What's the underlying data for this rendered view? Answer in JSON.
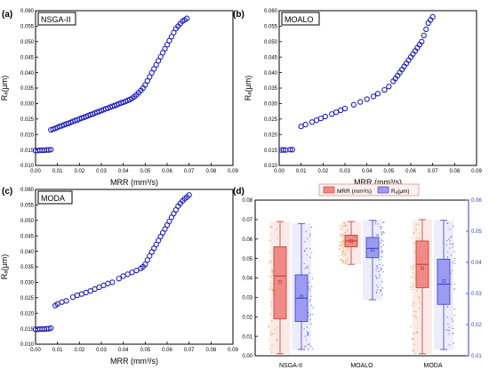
{
  "chart_data": [
    {
      "type": "scatter",
      "panel_label": "(a)",
      "title": "NSGA-II",
      "xlabel": "MRR (mm³/s)",
      "ylabel": "Rₐ(μm)",
      "xlim": [
        0.0,
        0.09
      ],
      "ylim": [
        0.01,
        0.06
      ],
      "xticks": [
        "0.00",
        "0.01",
        "0.02",
        "0.03",
        "0.04",
        "0.05",
        "0.06",
        "0.07",
        "0.08",
        "0.09"
      ],
      "yticks": [
        "0.010",
        "0.015",
        "0.020",
        "0.025",
        "0.030",
        "0.035",
        "0.040",
        "0.045",
        "0.050",
        "0.055",
        "0.060"
      ],
      "grid": false,
      "series": [
        {
          "marker": "open-circle",
          "color": "#1f1fb8",
          "x": [
            0.0,
            0.001,
            0.002,
            0.003,
            0.004,
            0.005,
            0.006,
            0.007,
            0.007,
            0.008,
            0.009,
            0.01,
            0.011,
            0.012,
            0.013,
            0.014,
            0.015,
            0.016,
            0.017,
            0.018,
            0.019,
            0.02,
            0.021,
            0.022,
            0.023,
            0.024,
            0.025,
            0.026,
            0.027,
            0.028,
            0.029,
            0.03,
            0.031,
            0.032,
            0.033,
            0.034,
            0.035,
            0.036,
            0.037,
            0.038,
            0.039,
            0.04,
            0.041,
            0.042,
            0.043,
            0.044,
            0.045,
            0.046,
            0.047,
            0.048,
            0.049,
            0.05,
            0.051,
            0.052,
            0.053,
            0.054,
            0.055,
            0.056,
            0.057,
            0.058,
            0.059,
            0.06,
            0.061,
            0.062,
            0.063,
            0.064,
            0.065,
            0.066,
            0.067,
            0.068,
            0.069
          ],
          "y": [
            0.0148,
            0.0148,
            0.0149,
            0.0149,
            0.0149,
            0.015,
            0.015,
            0.0151,
            0.0215,
            0.0217,
            0.022,
            0.0223,
            0.0226,
            0.0228,
            0.0231,
            0.0234,
            0.0236,
            0.0239,
            0.0242,
            0.0245,
            0.0247,
            0.025,
            0.0253,
            0.0255,
            0.0258,
            0.0261,
            0.0264,
            0.0266,
            0.0269,
            0.0272,
            0.0274,
            0.0277,
            0.028,
            0.0283,
            0.0285,
            0.0288,
            0.0291,
            0.0293,
            0.0296,
            0.0299,
            0.0302,
            0.0304,
            0.0307,
            0.031,
            0.0313,
            0.0317,
            0.0322,
            0.0328,
            0.0335,
            0.0342,
            0.035,
            0.036,
            0.0373,
            0.0386,
            0.0399,
            0.0412,
            0.0425,
            0.0438,
            0.0451,
            0.0464,
            0.0477,
            0.049,
            0.0503,
            0.0516,
            0.0529,
            0.0542,
            0.055,
            0.0558,
            0.0566,
            0.057,
            0.0575
          ]
        }
      ]
    },
    {
      "type": "scatter",
      "panel_label": "(b)",
      "title": "MOALO",
      "xlabel": "MRR (mm³/s)",
      "ylabel": "Rₐ(μm)",
      "xlim": [
        0.0,
        0.09
      ],
      "ylim": [
        0.01,
        0.06
      ],
      "xticks": [
        "0.00",
        "0.01",
        "0.02",
        "0.03",
        "0.04",
        "0.05",
        "0.06",
        "0.07",
        "0.08",
        "0.09"
      ],
      "yticks": [
        "0.010",
        "0.015",
        "0.020",
        "0.025",
        "0.030",
        "0.035",
        "0.040",
        "0.045",
        "0.050",
        "0.055",
        "0.060"
      ],
      "grid": false,
      "series": [
        {
          "marker": "open-circle",
          "color": "#1f1fb8",
          "x": [
            0.001,
            0.002,
            0.003,
            0.005,
            0.006,
            0.01,
            0.012,
            0.015,
            0.017,
            0.019,
            0.021,
            0.024,
            0.026,
            0.028,
            0.03,
            0.034,
            0.037,
            0.04,
            0.043,
            0.045,
            0.048,
            0.05,
            0.052,
            0.053,
            0.054,
            0.055,
            0.056,
            0.057,
            0.058,
            0.059,
            0.06,
            0.061,
            0.062,
            0.063,
            0.064,
            0.065,
            0.066,
            0.067,
            0.068,
            0.069,
            0.07
          ],
          "y": [
            0.015,
            0.015,
            0.015,
            0.0151,
            0.0151,
            0.0226,
            0.0232,
            0.024,
            0.0246,
            0.0252,
            0.0258,
            0.0266,
            0.0272,
            0.0278,
            0.0284,
            0.0296,
            0.0305,
            0.0314,
            0.0323,
            0.0332,
            0.0344,
            0.0355,
            0.0372,
            0.0381,
            0.039,
            0.04,
            0.041,
            0.042,
            0.043,
            0.044,
            0.045,
            0.046,
            0.047,
            0.048,
            0.049,
            0.05,
            0.052,
            0.054,
            0.056,
            0.057,
            0.058
          ]
        }
      ]
    },
    {
      "type": "scatter",
      "panel_label": "(c)",
      "title": "MODA",
      "xlabel": "MRR (mm³/s)",
      "ylabel": "Rₐ(μm)",
      "xlim": [
        0.0,
        0.09
      ],
      "ylim": [
        0.01,
        0.06
      ],
      "xticks": [
        "0.00",
        "0.01",
        "0.02",
        "0.03",
        "0.04",
        "0.05",
        "0.06",
        "0.07",
        "0.08",
        "0.09"
      ],
      "yticks": [
        "0.010",
        "0.015",
        "0.020",
        "0.025",
        "0.030",
        "0.035",
        "0.040",
        "0.045",
        "0.050",
        "0.055",
        "0.060"
      ],
      "grid": false,
      "series": [
        {
          "marker": "open-circle",
          "color": "#1f1fb8",
          "x": [
            0.0,
            0.001,
            0.002,
            0.003,
            0.004,
            0.005,
            0.006,
            0.007,
            0.009,
            0.01,
            0.012,
            0.014,
            0.017,
            0.019,
            0.021,
            0.023,
            0.025,
            0.027,
            0.029,
            0.031,
            0.033,
            0.035,
            0.038,
            0.04,
            0.042,
            0.044,
            0.046,
            0.048,
            0.049,
            0.05,
            0.051,
            0.052,
            0.053,
            0.054,
            0.055,
            0.056,
            0.057,
            0.058,
            0.059,
            0.06,
            0.061,
            0.062,
            0.063,
            0.064,
            0.065,
            0.066,
            0.067,
            0.068,
            0.069,
            0.07
          ],
          "y": [
            0.0148,
            0.0148,
            0.0149,
            0.0149,
            0.0149,
            0.015,
            0.015,
            0.0152,
            0.0225,
            0.023,
            0.0236,
            0.024,
            0.0252,
            0.0258,
            0.0262,
            0.0267,
            0.0272,
            0.0278,
            0.0284,
            0.029,
            0.0296,
            0.03,
            0.0312,
            0.032,
            0.0326,
            0.0332,
            0.0338,
            0.0345,
            0.035,
            0.0358,
            0.0372,
            0.0385,
            0.0398,
            0.041,
            0.0422,
            0.0435,
            0.0448,
            0.046,
            0.0472,
            0.0485,
            0.0497,
            0.051,
            0.0522,
            0.0534,
            0.0546,
            0.0555,
            0.0563,
            0.057,
            0.0575,
            0.0582
          ]
        }
      ]
    },
    {
      "type": "box",
      "panel_label": "(d)",
      "categories": [
        "NSGA-II",
        "MOALO",
        "MODA"
      ],
      "legend": [
        "MRR (mm³/s)",
        "Rₐ(μm)"
      ],
      "legend_position": "top",
      "grid": false,
      "y_left": {
        "ylim": [
          0.0,
          0.08
        ],
        "ticks": [
          "0.00",
          "0.01",
          "0.02",
          "0.03",
          "0.04",
          "0.05",
          "0.06",
          "0.07",
          "0.08"
        ]
      },
      "y_right": {
        "ylim": [
          0.01,
          0.06
        ],
        "ticks": [
          "0.01",
          "0.02",
          "0.03",
          "0.04",
          "0.05",
          "0.06"
        ]
      },
      "series": [
        {
          "name": "MRR (mm³/s)",
          "axis": "left",
          "fill": "#f08a86",
          "stroke": "#c0392b",
          "point_color": "#d4a017",
          "boxes": [
            {
              "min": 0.001,
              "q1": 0.019,
              "median": 0.041,
              "q3": 0.056,
              "max": 0.069,
              "mean": 0.038
            },
            {
              "min": 0.047,
              "q1": 0.056,
              "median": 0.059,
              "q3": 0.062,
              "max": 0.069,
              "mean": 0.059
            },
            {
              "min": 0.001,
              "q1": 0.035,
              "median": 0.047,
              "q3": 0.059,
              "max": 0.07,
              "mean": 0.045
            }
          ]
        },
        {
          "name": "Rₐ(μm)",
          "axis": "right",
          "fill": "#9b9bf0",
          "stroke": "#3a3ad0",
          "point_color": "#5a5ae0",
          "boxes": [
            {
              "min": 0.012,
              "q1": 0.021,
              "median": 0.0285,
              "q3": 0.036,
              "max": 0.0525,
              "mean": 0.029
            },
            {
              "min": 0.028,
              "q1": 0.0415,
              "median": 0.0445,
              "q3": 0.048,
              "max": 0.0535,
              "mean": 0.044
            },
            {
              "min": 0.012,
              "q1": 0.0265,
              "median": 0.033,
              "q3": 0.041,
              "max": 0.0535,
              "mean": 0.034
            }
          ]
        }
      ]
    }
  ]
}
